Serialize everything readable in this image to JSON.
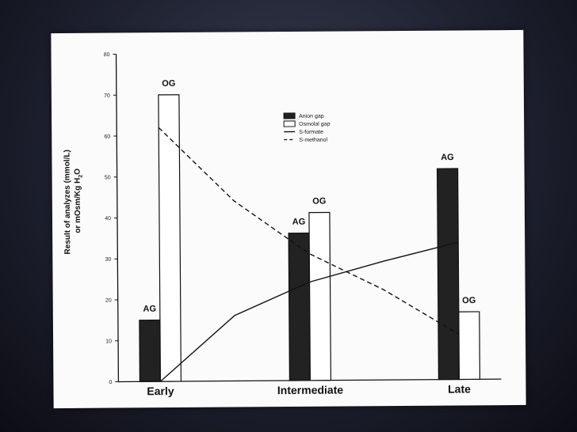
{
  "chart_data": {
    "type": "bar",
    "categories": [
      "Early",
      "Intermediate",
      "Late"
    ],
    "ylabel_line1": "Result of analyzes (mmol/L)",
    "ylabel_line2": "or mOsm/Kg H",
    "ylabel_sub": "2",
    "ylabel_end": "O",
    "ylim": [
      0,
      80
    ],
    "yticks": [
      0,
      10,
      20,
      30,
      40,
      50,
      60,
      70,
      80
    ],
    "legend_position": "top-center",
    "series": [
      {
        "name": "Anion gap",
        "kind": "bar",
        "fill": "#222222",
        "label": "AG",
        "values": [
          15,
          36,
          51.5
        ]
      },
      {
        "name": "Osmolal gap",
        "kind": "bar",
        "fill": "#ffffff",
        "label": "OG",
        "values": [
          70,
          41,
          16.5
        ]
      },
      {
        "name": "S-formate",
        "kind": "line",
        "dash": "solid",
        "x": [
          0,
          0.5,
          1,
          1.5,
          2
        ],
        "values": [
          0,
          16,
          24,
          29,
          33.5
        ]
      },
      {
        "name": "S-methanol",
        "kind": "line",
        "dash": "dashed",
        "x": [
          0,
          0.5,
          1,
          1.5,
          2
        ],
        "values": [
          62,
          44,
          31,
          22,
          11
        ]
      }
    ]
  }
}
